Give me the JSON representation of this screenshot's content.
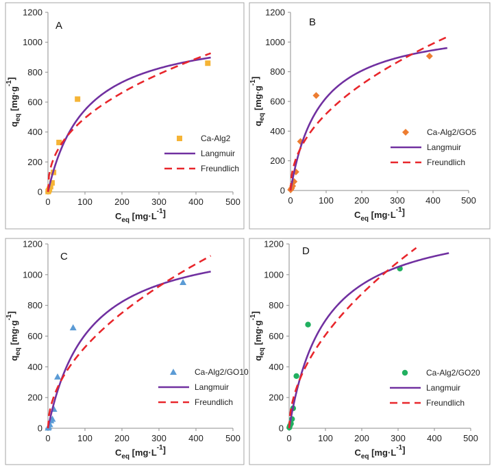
{
  "figure": {
    "colors": {
      "langmuir": "#7030a0",
      "freundlich": "#e8262b",
      "frame": "#a6a6a6"
    }
  },
  "chart_data": [
    {
      "panel": "A",
      "type": "scatter",
      "letter": "A",
      "xlabel": {
        "main": "C",
        "sub": "eq",
        "unit": " [mg·L",
        "exp": "-1",
        "close": "]"
      },
      "ylabel": {
        "main": "q",
        "sub": "eq",
        "unit": " [mg·g",
        "exp": "-1",
        "close": "]"
      },
      "xlim": [
        0,
        500
      ],
      "ylim": [
        0,
        1200
      ],
      "xticks": [
        0,
        100,
        200,
        300,
        400,
        500
      ],
      "yticks": [
        0,
        200,
        400,
        600,
        800,
        1000,
        1200
      ],
      "series": [
        {
          "name": "Ca-Alg2",
          "kind": "points",
          "marker": "square",
          "color": "#f5b436",
          "x": [
            0.5,
            2,
            4,
            7,
            11,
            15,
            30,
            80,
            432
          ],
          "y": [
            2,
            8,
            18,
            35,
            60,
            130,
            330,
            620,
            860
          ]
        },
        {
          "name": "Langmuir",
          "kind": "line",
          "style": "solid",
          "color": "#7030a0",
          "model": "langmuir",
          "qmax": 1106,
          "KL": 0.0098,
          "xrange": [
            0,
            440
          ]
        },
        {
          "name": "Freundlich",
          "kind": "line",
          "style": "dashed",
          "color": "#e8262b",
          "model": "freundlich",
          "KF": 69.5,
          "n": 2.35,
          "xrange": [
            0,
            440
          ]
        }
      ]
    },
    {
      "panel": "B",
      "type": "scatter",
      "letter": "B",
      "xlabel": {
        "main": "C",
        "sub": "eq",
        "unit": " [mg·L",
        "exp": "-1",
        "close": "]"
      },
      "ylabel": {
        "main": "q",
        "sub": "eq",
        "unit": " [mg·g",
        "exp": "-1",
        "close": "]"
      },
      "xlim": [
        0,
        500
      ],
      "ylim": [
        0,
        1200
      ],
      "xticks": [
        0,
        100,
        200,
        300,
        400,
        500
      ],
      "yticks": [
        0,
        200,
        400,
        600,
        800,
        1000,
        1200
      ],
      "series": [
        {
          "name": "Ca-Alg2/GO5",
          "kind": "points",
          "marker": "diamond",
          "color": "#ed7d31",
          "x": [
            0.5,
            3,
            6,
            10,
            15,
            28,
            72,
            390
          ],
          "y": [
            5,
            15,
            30,
            60,
            125,
            330,
            640,
            905
          ]
        },
        {
          "name": "Langmuir",
          "kind": "line",
          "style": "solid",
          "color": "#7030a0",
          "model": "langmuir",
          "qmax": 1140,
          "KL": 0.0121,
          "xrange": [
            0,
            440
          ]
        },
        {
          "name": "Freundlich",
          "kind": "line",
          "style": "dashed",
          "color": "#e8262b",
          "model": "freundlich",
          "KF": 59.4,
          "n": 2.13,
          "xrange": [
            0,
            440
          ]
        }
      ]
    },
    {
      "panel": "C",
      "type": "scatter",
      "letter": "C",
      "xlabel": {
        "main": "C",
        "sub": "eq",
        "unit": " [mg·L",
        "exp": "-1",
        "close": "]"
      },
      "ylabel": {
        "main": "q",
        "sub": "eq",
        "unit": " [mg·g",
        "exp": "-1",
        "close": "]"
      },
      "xlim": [
        0,
        500
      ],
      "ylim": [
        0,
        1200
      ],
      "xticks": [
        0,
        100,
        200,
        300,
        400,
        500
      ],
      "yticks": [
        0,
        200,
        400,
        600,
        800,
        1000,
        1200
      ],
      "series": [
        {
          "name": "Ca-Alg2/GO10",
          "kind": "points",
          "marker": "triangle",
          "color": "#5b9bd5",
          "x": [
            0.5,
            2,
            5,
            8,
            12,
            16,
            26,
            68,
            365
          ],
          "y": [
            3,
            10,
            25,
            50,
            60,
            125,
            335,
            655,
            950
          ]
        },
        {
          "name": "Langmuir",
          "kind": "line",
          "style": "solid",
          "color": "#7030a0",
          "model": "langmuir",
          "qmax": 1275,
          "KL": 0.0091,
          "xrange": [
            0,
            440
          ]
        },
        {
          "name": "Freundlich",
          "kind": "line",
          "style": "dashed",
          "color": "#e8262b",
          "model": "freundlich",
          "KF": 50.3,
          "n": 1.96,
          "xrange": [
            0,
            440
          ]
        }
      ]
    },
    {
      "panel": "D",
      "type": "scatter",
      "letter": "D",
      "xlabel": {
        "main": "C",
        "sub": "eq",
        "unit": " [mg·L",
        "exp": "-1",
        "close": "]"
      },
      "ylabel": {
        "main": "q",
        "sub": "eq",
        "unit": " [mg·g",
        "exp": "-1",
        "close": "]"
      },
      "xlim": [
        0,
        500
      ],
      "ylim": [
        0,
        1200
      ],
      "xticks": [
        0,
        100,
        200,
        300,
        400,
        500
      ],
      "yticks": [
        0,
        200,
        400,
        600,
        800,
        1000,
        1200
      ],
      "series": [
        {
          "name": "Ca-Alg2/GO20",
          "kind": "points",
          "marker": "circle",
          "color": "#21b060",
          "x": [
            0.5,
            2,
            5,
            8,
            11,
            20,
            52,
            305
          ],
          "y": [
            5,
            15,
            30,
            60,
            130,
            340,
            675,
            1040
          ]
        },
        {
          "name": "Langmuir",
          "kind": "line",
          "style": "solid",
          "color": "#7030a0",
          "model": "langmuir",
          "qmax": 1397,
          "KL": 0.0101,
          "xrange": [
            0,
            440
          ]
        },
        {
          "name": "Freundlich",
          "kind": "line",
          "style": "dashed",
          "color": "#e8262b",
          "model": "freundlich",
          "KF": 53.8,
          "n": 1.9,
          "xrange": [
            0,
            350
          ]
        }
      ]
    }
  ]
}
